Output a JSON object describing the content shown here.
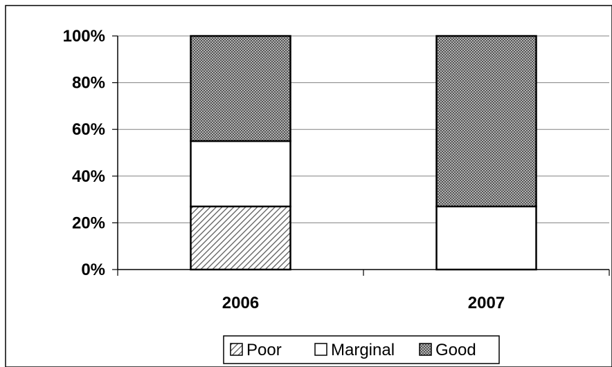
{
  "chart_data": {
    "type": "bar",
    "stacked": true,
    "percent": true,
    "title": "",
    "xlabel": "",
    "ylabel": "",
    "categories": [
      "2006",
      "2007"
    ],
    "series": [
      {
        "name": "Poor",
        "values": [
          27,
          0
        ],
        "pattern": "diagonal-hatch"
      },
      {
        "name": "Marginal",
        "values": [
          28,
          27
        ],
        "pattern": "white"
      },
      {
        "name": "Good",
        "values": [
          45,
          73
        ],
        "pattern": "dense-dots"
      }
    ],
    "ylim": [
      0,
      100
    ],
    "yticks": [
      "0%",
      "20%",
      "40%",
      "60%",
      "80%",
      "100%"
    ],
    "grid": true,
    "legend_position": "bottom",
    "colors": {
      "frame": "#000000",
      "grid": "#808080",
      "bar_outline": "#000000",
      "good_fill": "#808080"
    }
  }
}
